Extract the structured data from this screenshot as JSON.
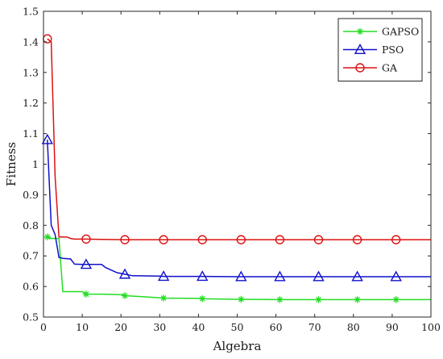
{
  "chart_data": {
    "type": "line",
    "xlabel": "Algebra",
    "ylabel": "Fitness",
    "xlim": [
      0,
      100
    ],
    "ylim": [
      0.5,
      1.5
    ],
    "xticks": [
      0,
      10,
      20,
      30,
      40,
      50,
      60,
      70,
      80,
      90,
      100
    ],
    "yticks": [
      0.5,
      0.6,
      0.7,
      0.8,
      0.9,
      1.0,
      1.1,
      1.2,
      1.3,
      1.4,
      1.5
    ],
    "xtick_labels": [
      "0",
      "10",
      "20",
      "30",
      "40",
      "50",
      "60",
      "70",
      "80",
      "90",
      "100"
    ],
    "ytick_labels": [
      "0.5",
      "0.6",
      "0.7",
      "0.8",
      "0.9",
      "1",
      "1.1",
      "1.2",
      "1.3",
      "1.4",
      "1.5"
    ],
    "grid": false,
    "legend_position": "top-right",
    "series": [
      {
        "name": "GAPSO",
        "color": "#22dd22",
        "marker": "asterisk",
        "x": [
          1,
          2,
          3,
          4,
          5,
          6,
          8,
          10,
          11,
          15,
          20,
          21,
          25,
          30,
          31,
          40,
          41,
          50,
          51,
          60,
          61,
          70,
          71,
          80,
          81,
          90,
          91,
          100
        ],
        "y": [
          0.762,
          0.757,
          0.757,
          0.757,
          0.583,
          0.583,
          0.583,
          0.583,
          0.575,
          0.575,
          0.573,
          0.57,
          0.567,
          0.563,
          0.562,
          0.561,
          0.56,
          0.558,
          0.558,
          0.557,
          0.557,
          0.557,
          0.557,
          0.557,
          0.557,
          0.557,
          0.557,
          0.557
        ],
        "marker_x": [
          1,
          11,
          21,
          31,
          41,
          51,
          61,
          71,
          81,
          91
        ],
        "marker_y": [
          0.762,
          0.575,
          0.57,
          0.562,
          0.56,
          0.558,
          0.557,
          0.557,
          0.557,
          0.557
        ]
      },
      {
        "name": "PSO",
        "color": "#1010cc",
        "marker": "triangle",
        "x": [
          1,
          2,
          3,
          4,
          5,
          7,
          8,
          10,
          11,
          15,
          16,
          19,
          21,
          23,
          30,
          31,
          40,
          41,
          50,
          51,
          60,
          61,
          70,
          71,
          80,
          81,
          90,
          91,
          100
        ],
        "y": [
          1.08,
          0.8,
          0.77,
          0.695,
          0.692,
          0.69,
          0.673,
          0.672,
          0.672,
          0.672,
          0.662,
          0.645,
          0.64,
          0.635,
          0.634,
          0.633,
          0.633,
          0.633,
          0.632,
          0.632,
          0.632,
          0.632,
          0.632,
          0.632,
          0.632,
          0.632,
          0.632,
          0.632,
          0.632
        ],
        "marker_x": [
          1,
          11,
          21,
          31,
          41,
          51,
          61,
          71,
          81,
          91
        ],
        "marker_y": [
          1.08,
          0.672,
          0.64,
          0.633,
          0.633,
          0.632,
          0.632,
          0.632,
          0.632,
          0.632
        ]
      },
      {
        "name": "GA",
        "color": "#dd1111",
        "marker": "circle",
        "x": [
          1,
          2,
          3,
          4,
          5,
          6,
          7,
          8,
          11,
          15,
          21,
          30,
          31,
          41,
          51,
          61,
          71,
          81,
          91,
          100
        ],
        "y": [
          1.41,
          1.4,
          0.96,
          0.762,
          0.762,
          0.762,
          0.757,
          0.755,
          0.755,
          0.754,
          0.753,
          0.753,
          0.753,
          0.753,
          0.753,
          0.753,
          0.753,
          0.753,
          0.753,
          0.753
        ],
        "marker_x": [
          1,
          11,
          21,
          31,
          41,
          51,
          61,
          71,
          81,
          91
        ],
        "marker_y": [
          1.41,
          0.755,
          0.753,
          0.753,
          0.753,
          0.753,
          0.753,
          0.753,
          0.753,
          0.753
        ]
      }
    ]
  }
}
